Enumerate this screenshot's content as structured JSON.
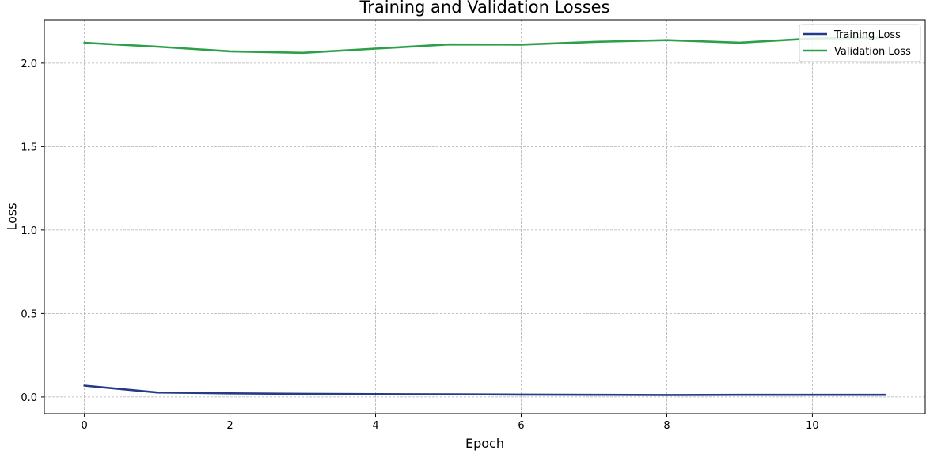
{
  "chart_data": {
    "type": "line",
    "title": "Training and Validation Losses",
    "xlabel": "Epoch",
    "ylabel": "Loss",
    "xlim": [
      -0.55,
      11.55
    ],
    "ylim": [
      -0.1,
      2.26
    ],
    "x_ticks": [
      0,
      2,
      4,
      6,
      8,
      10
    ],
    "x_tick_labels": [
      "0",
      "2",
      "4",
      "6",
      "8",
      "10"
    ],
    "y_ticks": [
      0.0,
      0.5,
      1.0,
      1.5,
      2.0
    ],
    "y_tick_labels": [
      "0.0",
      "0.5",
      "1.0",
      "1.5",
      "2.0"
    ],
    "grid": true,
    "legend_position": "top-right",
    "x": [
      0,
      1,
      2,
      3,
      4,
      5,
      6,
      7,
      8,
      9,
      10,
      11
    ],
    "series": [
      {
        "name": "Training Loss",
        "color": "#233b89",
        "values": [
          0.068,
          0.027,
          0.022,
          0.019,
          0.017,
          0.016,
          0.014,
          0.013,
          0.012,
          0.013,
          0.013,
          0.013
        ]
      },
      {
        "name": "Validation Loss",
        "color": "#2ca048",
        "values": [
          2.122,
          2.099,
          2.071,
          2.062,
          2.087,
          2.112,
          2.111,
          2.128,
          2.138,
          2.123,
          2.148,
          2.152
        ]
      }
    ]
  }
}
